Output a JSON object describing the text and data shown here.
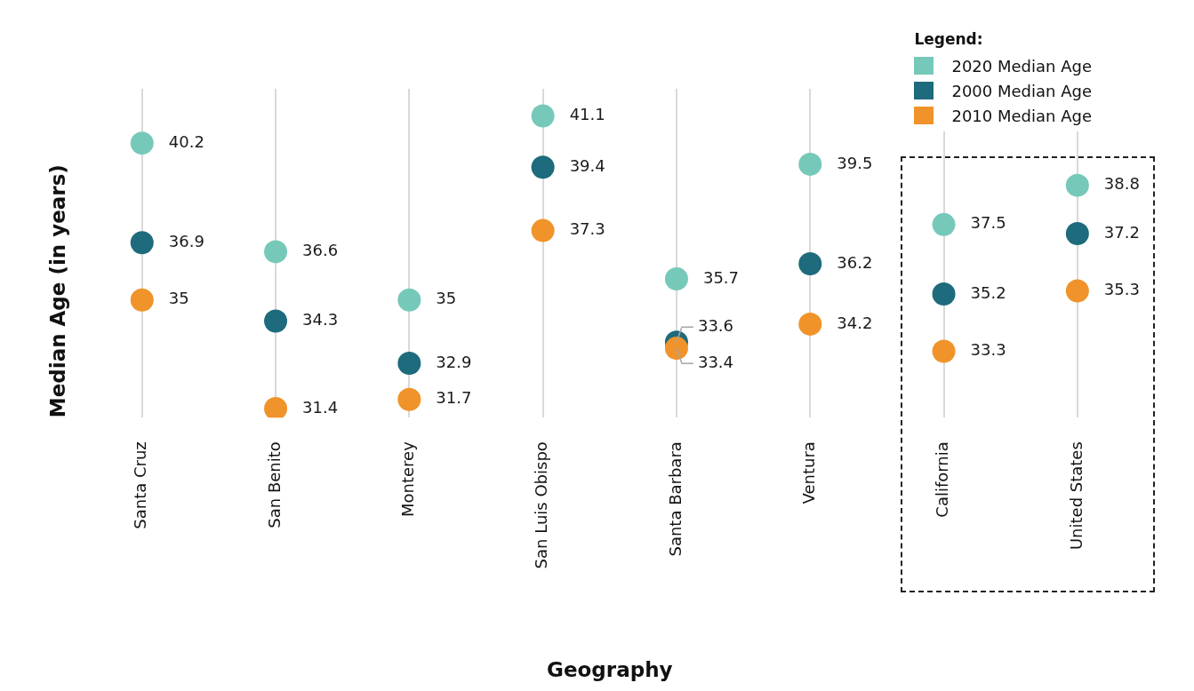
{
  "chart_data": {
    "type": "scatter",
    "xlabel": "Geography",
    "ylabel": "Median Age (in years)",
    "legend_title": "Legend:",
    "legend": "top right",
    "categories": [
      "Santa Cruz",
      "San Benito",
      "Monterey",
      "San Luis Obispo",
      "Santa Barbara",
      "Ventura",
      "California",
      "United States"
    ],
    "series": [
      {
        "name": "2020 Median Age",
        "color": "#76c9b8",
        "values": [
          40.2,
          36.6,
          35,
          41.1,
          35.7,
          39.5,
          37.5,
          38.8
        ]
      },
      {
        "name": "2000 Median Age",
        "color": "#1d6b7c",
        "values": [
          36.9,
          34.3,
          32.9,
          39.4,
          33.6,
          36.2,
          35.2,
          37.2
        ]
      },
      {
        "name": "2010 Median Age",
        "color": "#f0932a",
        "values": [
          35,
          31.4,
          31.7,
          37.3,
          33.4,
          34.2,
          33.3,
          35.3
        ]
      }
    ],
    "ylim": [
      31.1,
      42
    ],
    "tick_labels": "x",
    "grid": "x",
    "marker": "circle",
    "data_labels": true
  }
}
